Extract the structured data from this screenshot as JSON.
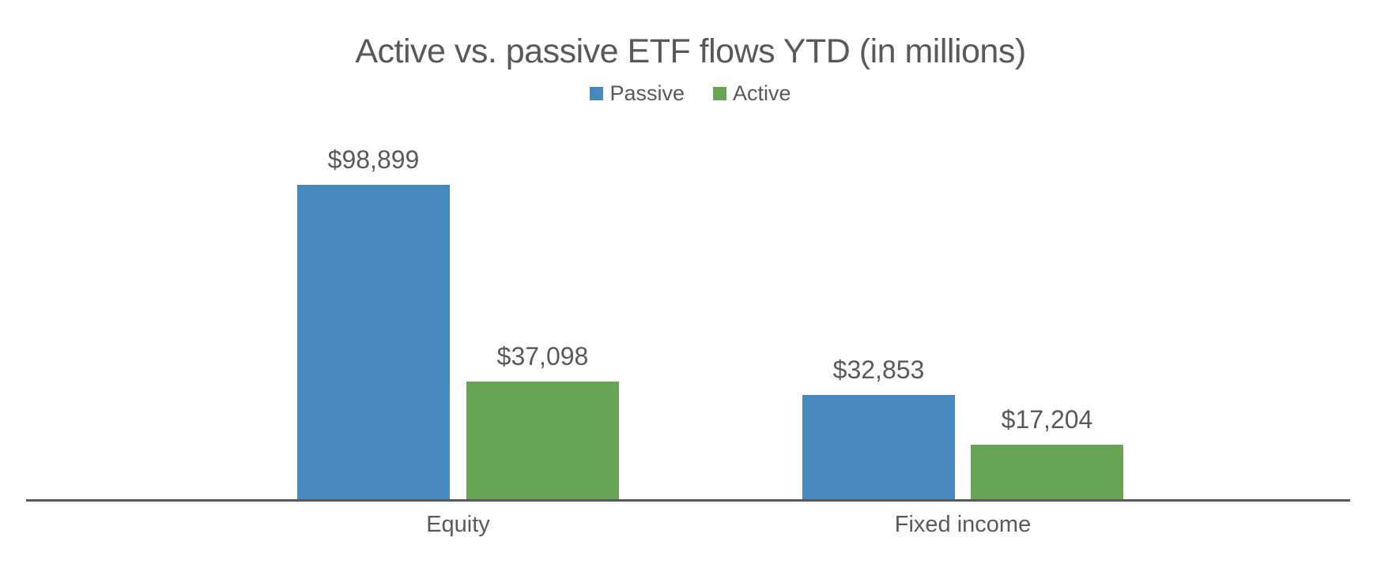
{
  "title": "Active vs. passive ETF flows YTD (in millions)",
  "colors": {
    "passive": "#4789BE",
    "active": "#67A454",
    "text": "#595959",
    "axis": "#595959"
  },
  "legend": [
    {
      "name": "Passive",
      "color": "#4789BE"
    },
    {
      "name": "Active",
      "color": "#67A454"
    }
  ],
  "chart_data": {
    "type": "bar",
    "title": "Active vs. passive ETF flows YTD (in millions)",
    "categories": [
      "Equity",
      "Fixed income"
    ],
    "series": [
      {
        "name": "Passive",
        "color": "#4789BE",
        "values": [
          98899,
          32853
        ],
        "labels": [
          "$98,899",
          "$32,853"
        ]
      },
      {
        "name": "Active",
        "color": "#67A454",
        "values": [
          37098,
          17204
        ],
        "labels": [
          "$37,098",
          "$17,204"
        ]
      }
    ],
    "value_prefix": "$",
    "xlabel": "",
    "ylabel": "",
    "ylim": [
      0,
      120000
    ],
    "grid": false,
    "legend_position": "top",
    "data_labels": true
  }
}
